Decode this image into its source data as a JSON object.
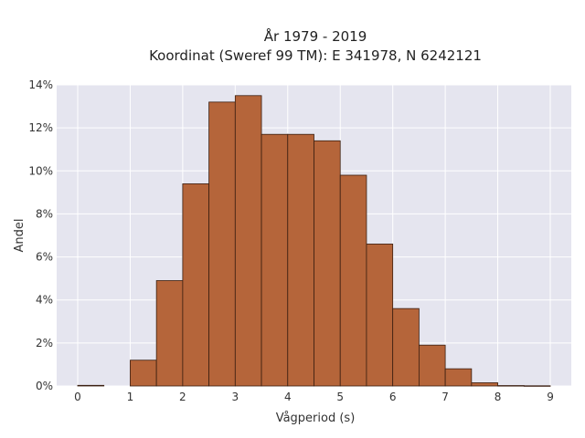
{
  "chart_data": {
    "type": "bar",
    "title_lines": [
      "År 1979 - 2019",
      "Koordinat (Sweref 99 TM): E 341978, N 6242121"
    ],
    "xlabel": "Vågperiod (s)",
    "ylabel": "Andel",
    "bin_width": 0.5,
    "bins": [
      {
        "x0": 0.0,
        "x1": 0.5,
        "value": 0.03
      },
      {
        "x0": 1.0,
        "x1": 1.5,
        "value": 1.2
      },
      {
        "x0": 1.5,
        "x1": 2.0,
        "value": 4.9
      },
      {
        "x0": 2.0,
        "x1": 2.5,
        "value": 9.4
      },
      {
        "x0": 2.5,
        "x1": 3.0,
        "value": 13.2
      },
      {
        "x0": 3.0,
        "x1": 3.5,
        "value": 13.5
      },
      {
        "x0": 3.5,
        "x1": 4.0,
        "value": 11.7
      },
      {
        "x0": 4.0,
        "x1": 4.5,
        "value": 11.7
      },
      {
        "x0": 4.5,
        "x1": 5.0,
        "value": 11.4
      },
      {
        "x0": 5.0,
        "x1": 5.5,
        "value": 9.8
      },
      {
        "x0": 5.5,
        "x1": 6.0,
        "value": 6.6
      },
      {
        "x0": 6.0,
        "x1": 6.5,
        "value": 3.6
      },
      {
        "x0": 6.5,
        "x1": 7.0,
        "value": 1.9
      },
      {
        "x0": 7.0,
        "x1": 7.5,
        "value": 0.8
      },
      {
        "x0": 7.5,
        "x1": 8.0,
        "value": 0.15
      },
      {
        "x0": 8.0,
        "x1": 8.5,
        "value": 0.02
      },
      {
        "x0": 8.5,
        "x1": 9.0,
        "value": 0.01
      }
    ],
    "xticks": [
      "0",
      "1",
      "2",
      "3",
      "4",
      "5",
      "6",
      "7",
      "8",
      "9"
    ],
    "yticks": [
      "0%",
      "2%",
      "4%",
      "6%",
      "8%",
      "10%",
      "12%",
      "14%"
    ],
    "xlim": [
      -0.4,
      9.4
    ],
    "ylim": [
      0,
      14
    ],
    "grid": true,
    "colors": {
      "bar_fill": "#b5653a",
      "bar_edge": "#3a1e10",
      "plot_bg": "#e5e5ef",
      "grid": "#ffffff"
    }
  }
}
